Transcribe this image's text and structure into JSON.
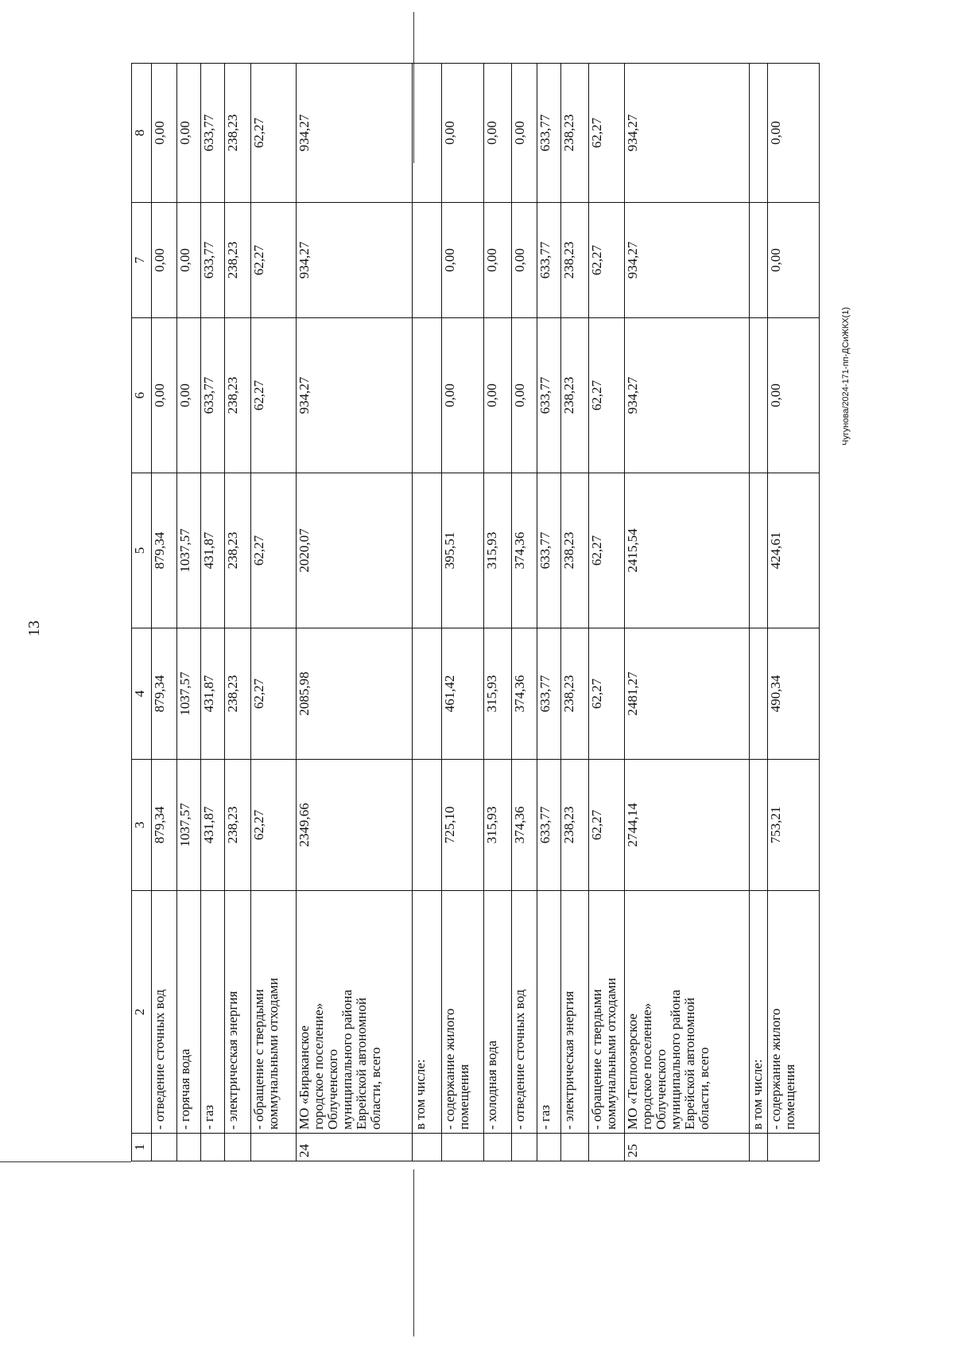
{
  "page_number": "13",
  "footer": "Чугунова/2024-171-пп-ДСиЖКХ(1)",
  "table": {
    "header": [
      "1",
      "2",
      "3",
      "4",
      "5",
      "6",
      "7",
      "8"
    ],
    "rows": [
      {
        "n": "",
        "name": "- отведение сточных вод",
        "v": [
          "879,34",
          "879,34",
          "879,34",
          "0,00",
          "0,00",
          "0,00"
        ]
      },
      {
        "n": "",
        "name": "- горячая вода",
        "v": [
          "1037,57",
          "1037,57",
          "1037,57",
          "0,00",
          "0,00",
          "0,00"
        ]
      },
      {
        "n": "",
        "name": "- газ",
        "v": [
          "431,87",
          "431,87",
          "431,87",
          "633,77",
          "633,77",
          "633,77"
        ]
      },
      {
        "n": "",
        "name": "- электрическая энергия",
        "v": [
          "238,23",
          "238,23",
          "238,23",
          "238,23",
          "238,23",
          "238,23"
        ]
      },
      {
        "n": "",
        "name": "- обращение с твердыми\nкоммунальными отходами",
        "v": [
          "62,27",
          "62,27",
          "62,27",
          "62,27",
          "62,27",
          "62,27"
        ]
      },
      {
        "n": "24",
        "name": "МО «Бираканское\nгородское поселение»\nОблученского\nмуниципального района\nЕврейской автономной\nобласти, всего",
        "v": [
          "2349,66",
          "2085,98",
          "2020,07",
          "934,27",
          "934,27",
          "934,27"
        ]
      },
      {
        "n": "",
        "name": "в том числе:",
        "v": [
          "",
          "",
          "",
          "",
          "",
          ""
        ]
      },
      {
        "n": "",
        "name": "- содержание жилого\nпомещения",
        "v": [
          "725,10",
          "461,42",
          "395,51",
          "0,00",
          "0,00",
          "0,00"
        ]
      },
      {
        "n": "",
        "name": "- холодная вода",
        "v": [
          "315,93",
          "315,93",
          "315,93",
          "0,00",
          "0,00",
          "0,00"
        ]
      },
      {
        "n": "",
        "name": "- отведение сточных вод",
        "v": [
          "374,36",
          "374,36",
          "374,36",
          "0,00",
          "0,00",
          "0,00"
        ]
      },
      {
        "n": "",
        "name": "- газ",
        "v": [
          "633,77",
          "633,77",
          "633,77",
          "633,77",
          "633,77",
          "633,77"
        ]
      },
      {
        "n": "",
        "name": "- электрическая энергия",
        "v": [
          "238,23",
          "238,23",
          "238,23",
          "238,23",
          "238,23",
          "238,23"
        ]
      },
      {
        "n": "",
        "name": "- обращение с твердыми\nкоммунальными отходами",
        "v": [
          "62,27",
          "62,27",
          "62,27",
          "62,27",
          "62,27",
          "62,27"
        ]
      },
      {
        "n": "25",
        "name": "МО «Теплоозерское\nгородское поселение»\nОблученского\nмуниципального района\nЕврейской автономной\nобласти, всего",
        "v": [
          "2744,14",
          "2481,27",
          "2415,54",
          "934,27",
          "934,27",
          "934,27"
        ]
      },
      {
        "n": "",
        "name": "в том числе:",
        "v": [
          "",
          "",
          "",
          "",
          "",
          ""
        ]
      },
      {
        "n": "",
        "name": "- содержание жилого\nпомещения",
        "v": [
          "753,21",
          "490,34",
          "424,61",
          "0,00",
          "0,00",
          "0,00"
        ]
      }
    ]
  }
}
